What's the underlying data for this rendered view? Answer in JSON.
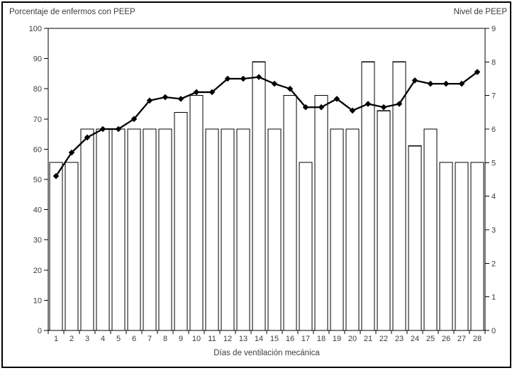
{
  "chart_data": {
    "type": "combo-bar-line",
    "title": "",
    "xlabel": "Días de ventilación mecánica",
    "left_axis": {
      "title": "Porcentaje de enfermos con PEEP",
      "min": 0,
      "max": 100,
      "step": 10
    },
    "right_axis": {
      "title": "Nivel de PEEP",
      "min": 0,
      "max": 9,
      "step": 1
    },
    "categories": [
      "1",
      "2",
      "3",
      "4",
      "5",
      "6",
      "7",
      "8",
      "9",
      "10",
      "11",
      "12",
      "13",
      "14",
      "15",
      "16",
      "17",
      "18",
      "19",
      "20",
      "21",
      "22",
      "23",
      "24",
      "25",
      "26",
      "27",
      "28"
    ],
    "series": [
      {
        "name": "Porcentaje de enfermos con PEEP",
        "type": "bar",
        "axis": "left",
        "values": [
          55.6,
          55.6,
          66.7,
          66.7,
          66.7,
          66.7,
          66.7,
          66.7,
          72.2,
          77.8,
          66.7,
          66.7,
          66.7,
          88.9,
          66.7,
          77.8,
          55.6,
          77.8,
          66.7,
          66.7,
          88.9,
          72.7,
          88.9,
          61.1,
          66.7,
          55.6,
          55.6,
          55.6
        ]
      },
      {
        "name": "Nivel de PEEP",
        "type": "line",
        "axis": "right",
        "marker": "diamond",
        "values": [
          4.6,
          5.3,
          5.75,
          6.0,
          6.0,
          6.3,
          6.85,
          6.95,
          6.9,
          7.1,
          7.1,
          7.5,
          7.5,
          7.55,
          7.35,
          7.2,
          6.65,
          6.65,
          6.9,
          6.55,
          6.75,
          6.65,
          6.75,
          7.45,
          7.35,
          7.35,
          7.35,
          7.7
        ]
      }
    ],
    "grid": false,
    "legend_position": "none",
    "colors": {
      "bar_fill": "#ffffff",
      "bar_border": "#000000",
      "line": "#000000",
      "axis": "#000000",
      "text": "#3d3d3d",
      "background": "#ffffff"
    }
  }
}
